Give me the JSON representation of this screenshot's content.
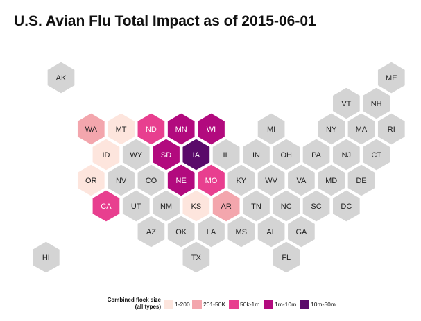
{
  "title": "U.S. Avian Flu Total Impact as of 2015-06-01",
  "legend": {
    "title_line1": "Combined flock size",
    "title_line2": "(all types)",
    "items": [
      {
        "label": "1-200",
        "color": "#fde5dd"
      },
      {
        "label": "201-50K",
        "color": "#f3a6ad"
      },
      {
        "label": "50k-1m",
        "color": "#e83f8f"
      },
      {
        "label": "1m-10m",
        "color": "#b20a7e"
      },
      {
        "label": "10m-50m",
        "color": "#5a0a6a"
      }
    ]
  },
  "colors": {
    "none": "#d4d4d4",
    "categories": [
      "#fde5dd",
      "#f3a6ad",
      "#e83f8f",
      "#b20a7e",
      "#5a0a6a"
    ]
  },
  "states": [
    {
      "abbr": "AK",
      "col": 0,
      "row": 0,
      "category": null
    },
    {
      "abbr": "ME",
      "col": 11,
      "row": 0,
      "category": null
    },
    {
      "abbr": "VT",
      "col": 9.5,
      "row": 1,
      "category": null
    },
    {
      "abbr": "NH",
      "col": 10.5,
      "row": 1,
      "category": null
    },
    {
      "abbr": "WA",
      "col": 1,
      "row": 2,
      "category": 1
    },
    {
      "abbr": "MT",
      "col": 2,
      "row": 2,
      "category": 0
    },
    {
      "abbr": "ND",
      "col": 3,
      "row": 2,
      "category": 2
    },
    {
      "abbr": "MN",
      "col": 4,
      "row": 2,
      "category": 3
    },
    {
      "abbr": "WI",
      "col": 5,
      "row": 2,
      "category": 3
    },
    {
      "abbr": "MI",
      "col": 7,
      "row": 2,
      "category": null
    },
    {
      "abbr": "NY",
      "col": 9,
      "row": 2,
      "category": null
    },
    {
      "abbr": "MA",
      "col": 10,
      "row": 2,
      "category": null
    },
    {
      "abbr": "RI",
      "col": 11,
      "row": 2,
      "category": null
    },
    {
      "abbr": "ID",
      "col": 1.5,
      "row": 3,
      "category": 0
    },
    {
      "abbr": "WY",
      "col": 2.5,
      "row": 3,
      "category": null
    },
    {
      "abbr": "SD",
      "col": 3.5,
      "row": 3,
      "category": 3
    },
    {
      "abbr": "IA",
      "col": 4.5,
      "row": 3,
      "category": 4
    },
    {
      "abbr": "IL",
      "col": 5.5,
      "row": 3,
      "category": null
    },
    {
      "abbr": "IN",
      "col": 6.5,
      "row": 3,
      "category": null
    },
    {
      "abbr": "OH",
      "col": 7.5,
      "row": 3,
      "category": null
    },
    {
      "abbr": "PA",
      "col": 8.5,
      "row": 3,
      "category": null
    },
    {
      "abbr": "NJ",
      "col": 9.5,
      "row": 3,
      "category": null
    },
    {
      "abbr": "CT",
      "col": 10.5,
      "row": 3,
      "category": null
    },
    {
      "abbr": "OR",
      "col": 1,
      "row": 4,
      "category": 0
    },
    {
      "abbr": "NV",
      "col": 2,
      "row": 4,
      "category": null
    },
    {
      "abbr": "CO",
      "col": 3,
      "row": 4,
      "category": null
    },
    {
      "abbr": "NE",
      "col": 4,
      "row": 4,
      "category": 3
    },
    {
      "abbr": "MO",
      "col": 5,
      "row": 4,
      "category": 2
    },
    {
      "abbr": "KY",
      "col": 6,
      "row": 4,
      "category": null
    },
    {
      "abbr": "WV",
      "col": 7,
      "row": 4,
      "category": null
    },
    {
      "abbr": "VA",
      "col": 8,
      "row": 4,
      "category": null
    },
    {
      "abbr": "MD",
      "col": 9,
      "row": 4,
      "category": null
    },
    {
      "abbr": "DE",
      "col": 10,
      "row": 4,
      "category": null
    },
    {
      "abbr": "CA",
      "col": 1.5,
      "row": 5,
      "category": 2
    },
    {
      "abbr": "UT",
      "col": 2.5,
      "row": 5,
      "category": null
    },
    {
      "abbr": "NM",
      "col": 3.5,
      "row": 5,
      "category": null
    },
    {
      "abbr": "KS",
      "col": 4.5,
      "row": 5,
      "category": 0
    },
    {
      "abbr": "AR",
      "col": 5.5,
      "row": 5,
      "category": 1
    },
    {
      "abbr": "TN",
      "col": 6.5,
      "row": 5,
      "category": null
    },
    {
      "abbr": "NC",
      "col": 7.5,
      "row": 5,
      "category": null
    },
    {
      "abbr": "SC",
      "col": 8.5,
      "row": 5,
      "category": null
    },
    {
      "abbr": "DC",
      "col": 9.5,
      "row": 5,
      "category": null
    },
    {
      "abbr": "AZ",
      "col": 3,
      "row": 6,
      "category": null
    },
    {
      "abbr": "OK",
      "col": 4,
      "row": 6,
      "category": null
    },
    {
      "abbr": "LA",
      "col": 5,
      "row": 6,
      "category": null
    },
    {
      "abbr": "MS",
      "col": 6,
      "row": 6,
      "category": null
    },
    {
      "abbr": "AL",
      "col": 7,
      "row": 6,
      "category": null
    },
    {
      "abbr": "GA",
      "col": 8,
      "row": 6,
      "category": null
    },
    {
      "abbr": "HI",
      "col": -0.5,
      "row": 7,
      "category": null
    },
    {
      "abbr": "TX",
      "col": 4.5,
      "row": 7,
      "category": null
    },
    {
      "abbr": "FL",
      "col": 7.5,
      "row": 7,
      "category": null
    }
  ]
}
